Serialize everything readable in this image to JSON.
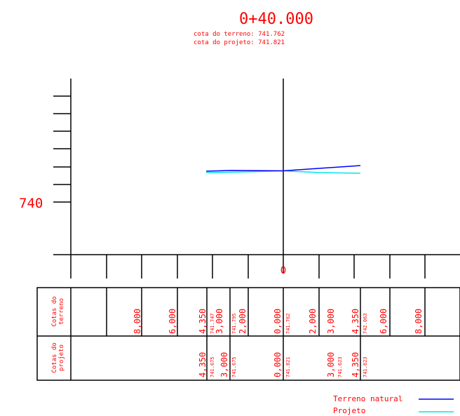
{
  "header": {
    "station": "0+40.000",
    "terrain_label": "cota do terreno: 741.762",
    "project_label": "cota do projeto: 741.821"
  },
  "axes": {
    "y_tick_label": "740",
    "x_center_label": "0"
  },
  "table": {
    "row_terrain_title": [
      "Cotas do",
      "terreno"
    ],
    "row_project_title": [
      "Cotas do",
      "projeto"
    ],
    "terrain_values": [
      "8,000",
      "6,000",
      "4,350",
      "3,000",
      "741.747",
      "741.795",
      "2,000",
      "0,000",
      "741.762",
      "2,000",
      "3,000",
      "4,350",
      "742.063",
      "6,000",
      "8,000"
    ],
    "project_values": [
      "4,350",
      "741.675",
      "3,000",
      "741.675",
      "0,000",
      "741.821",
      "3,000",
      "741.623",
      "4,350",
      "741.623"
    ]
  },
  "legend": {
    "items": [
      {
        "label": "Terreno natural",
        "color": "#0000ff"
      },
      {
        "label": "Projeto",
        "color": "#00e5ee"
      }
    ]
  },
  "colors": {
    "text": "#ff0000",
    "lines": "#000000",
    "terrain": "#0000ff",
    "project": "#00e5ee"
  }
}
